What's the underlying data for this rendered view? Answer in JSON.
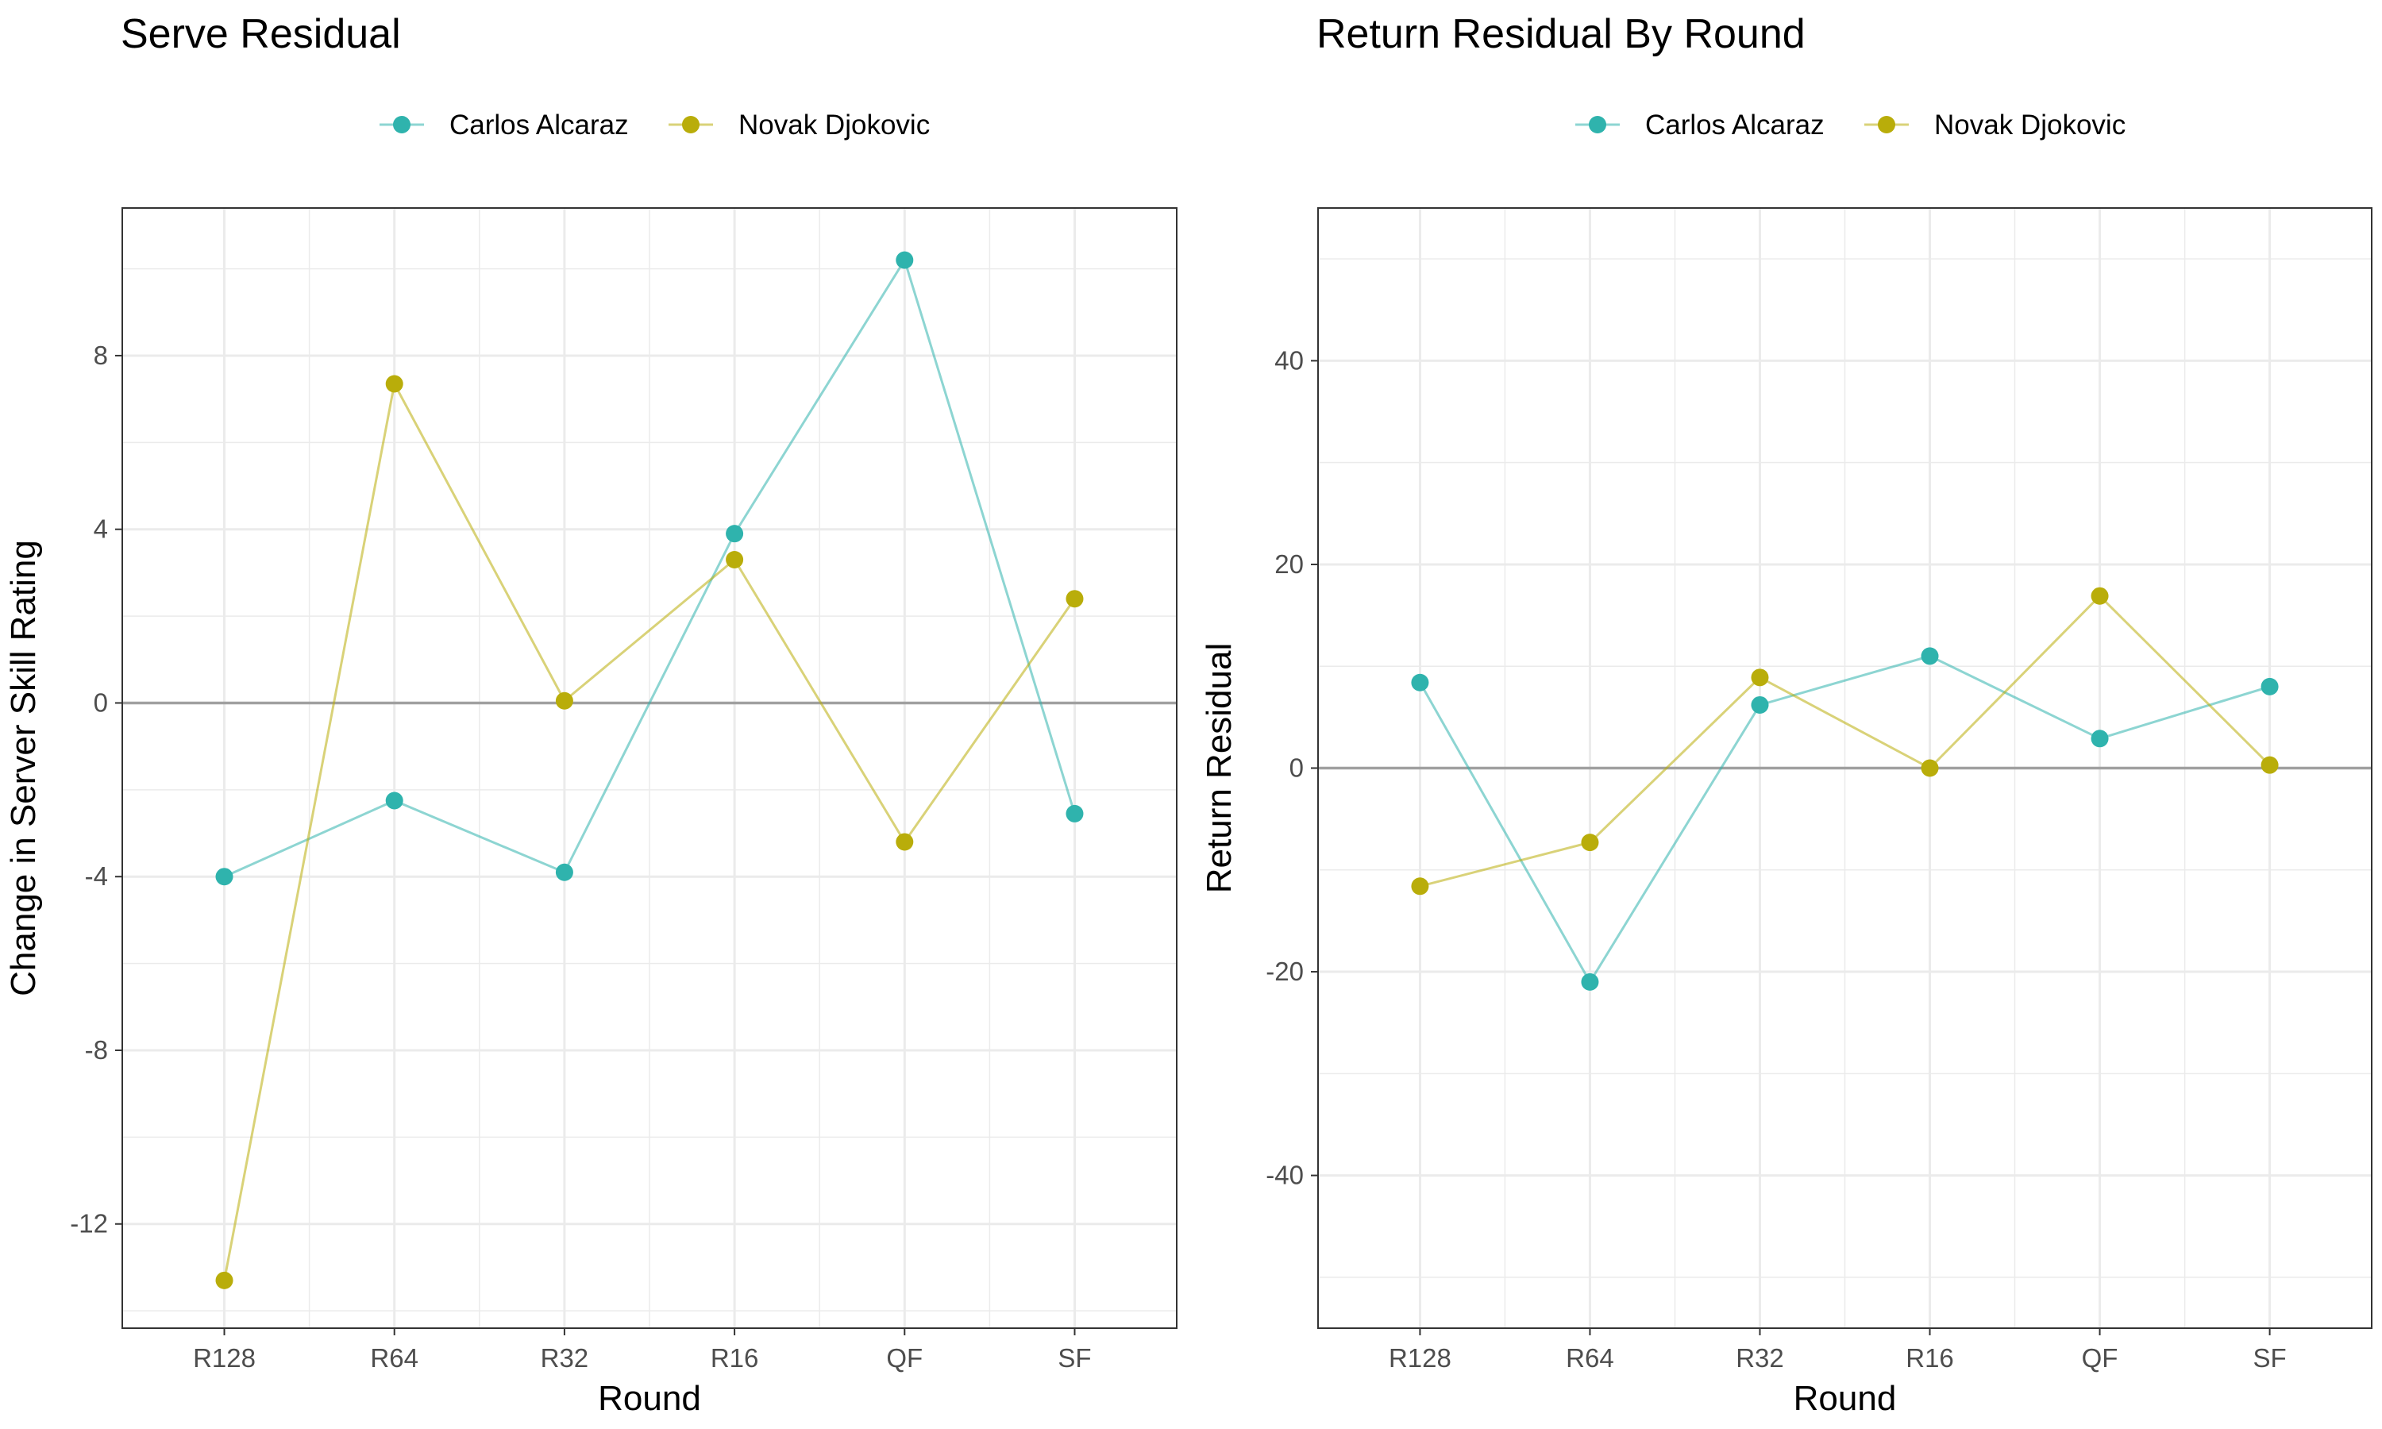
{
  "colors": {
    "alcaraz": "#2fb3ad",
    "djokovic": "#b9ad0a",
    "zero_line": "#a0a0a0",
    "grid": "#ebebeb",
    "border": "#333333"
  },
  "chart_data": [
    {
      "type": "line",
      "title": "Serve Residual",
      "xlabel": "Round",
      "ylabel": "Change in Server Skill Rating",
      "categories": [
        "R128",
        "R64",
        "R32",
        "R16",
        "QF",
        "SF"
      ],
      "ylim": [
        -14.4,
        11.4
      ],
      "yticks": [
        -12,
        -8,
        -4,
        0,
        4,
        8
      ],
      "ytick_labels": [
        "-12",
        "-8",
        "-4",
        "0",
        "4",
        "8"
      ],
      "reference_line": 0,
      "legend_position": "top",
      "grid": true,
      "series": [
        {
          "name": "Carlos Alcaraz",
          "color_key": "alcaraz",
          "values": [
            -4.0,
            -2.25,
            -3.9,
            3.9,
            10.2,
            -2.55
          ]
        },
        {
          "name": "Novak Djokovic",
          "color_key": "djokovic",
          "values": [
            -13.3,
            7.35,
            0.05,
            3.3,
            -3.2,
            2.4
          ]
        }
      ]
    },
    {
      "type": "line",
      "title": "Return Residual By Round",
      "xlabel": "Round",
      "ylabel": "Return Residual",
      "categories": [
        "R128",
        "R64",
        "R32",
        "R16",
        "QF",
        "SF"
      ],
      "ylim": [
        -55,
        55
      ],
      "yticks": [
        -40,
        -20,
        0,
        20,
        40
      ],
      "ytick_labels": [
        "-40",
        "-20",
        "0",
        "20",
        "40"
      ],
      "reference_line": 0,
      "legend_position": "top",
      "grid": true,
      "series": [
        {
          "name": "Carlos Alcaraz",
          "color_key": "alcaraz",
          "values": [
            8.4,
            -21.0,
            6.2,
            11.0,
            2.9,
            8.0
          ]
        },
        {
          "name": "Novak Djokovic",
          "color_key": "djokovic",
          "values": [
            -11.6,
            -7.3,
            8.9,
            0.0,
            16.9,
            0.3
          ]
        }
      ]
    }
  ]
}
